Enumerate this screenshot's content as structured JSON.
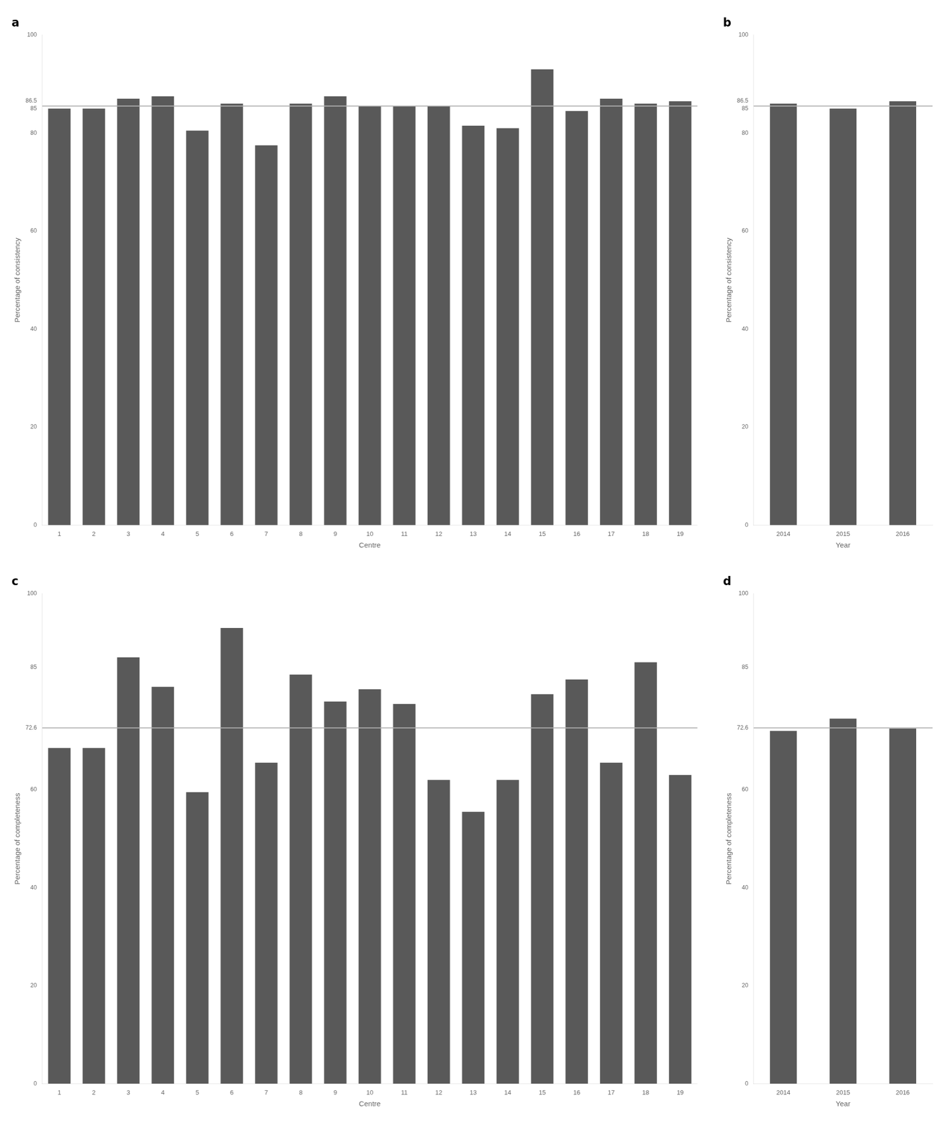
{
  "chart_data": [
    {
      "type": "bar",
      "title": "a",
      "categories": [
        "1",
        "2",
        "3",
        "4",
        "5",
        "6",
        "7",
        "8",
        "9",
        "10",
        "11",
        "12",
        "13",
        "14",
        "15",
        "16",
        "17",
        "18",
        "19"
      ],
      "values": [
        85.0,
        85.0,
        87.0,
        87.5,
        80.5,
        86.0,
        77.5,
        86.0,
        87.5,
        85.5,
        85.5,
        85.5,
        81.5,
        81.0,
        93.0,
        84.5,
        87.0,
        86.0,
        86.5
      ],
      "color": "#595959",
      "xlabel": "Centre",
      "ylabel": "Percentage of consistency",
      "ylim": [
        0,
        100
      ],
      "yticks": [
        0,
        20,
        40,
        60,
        80,
        85,
        86.5,
        100
      ],
      "mean_line": {
        "value": 85.5,
        "color": "#b0b0b0"
      },
      "grid": false
    },
    {
      "type": "bar",
      "title": "b",
      "categories": [
        "2014",
        "2015",
        "2016"
      ],
      "values": [
        86.0,
        85.0,
        86.5
      ],
      "color": "#595959",
      "xlabel": "Year",
      "ylabel": "Percentage of consistency",
      "ylim": [
        0,
        100
      ],
      "yticks": [
        0,
        20,
        40,
        60,
        80,
        85,
        86.5,
        100
      ],
      "mean_line": {
        "value": 85.5,
        "color": "#b0b0b0"
      },
      "grid": false
    },
    {
      "type": "bar",
      "title": "c",
      "categories": [
        "1",
        "2",
        "3",
        "4",
        "5",
        "6",
        "7",
        "8",
        "9",
        "10",
        "11",
        "12",
        "13",
        "14",
        "15",
        "16",
        "17",
        "18",
        "19"
      ],
      "values": [
        68.5,
        68.5,
        87.0,
        81.0,
        59.5,
        93.0,
        65.5,
        83.5,
        78.0,
        80.5,
        77.5,
        62.0,
        55.5,
        62.0,
        79.5,
        82.5,
        65.5,
        86.0,
        63.0
      ],
      "color": "#595959",
      "xlabel": "Centre",
      "ylabel": "Percentage of completeness",
      "ylim": [
        0,
        100
      ],
      "yticks": [
        0,
        20,
        40,
        60,
        72.6,
        85,
        100
      ],
      "mean_line": {
        "value": 72.6,
        "color": "#b0b0b0"
      },
      "grid": false
    },
    {
      "type": "bar",
      "title": "d",
      "categories": [
        "2014",
        "2015",
        "2016"
      ],
      "values": [
        72.0,
        74.5,
        72.5
      ],
      "color": "#595959",
      "xlabel": "Year",
      "ylabel": "Percentage of completeness",
      "ylim": [
        0,
        100
      ],
      "yticks": [
        0,
        20,
        40,
        60,
        72.6,
        85,
        100
      ],
      "mean_line": {
        "value": 72.6,
        "color": "#b0b0b0"
      },
      "grid": false
    }
  ]
}
